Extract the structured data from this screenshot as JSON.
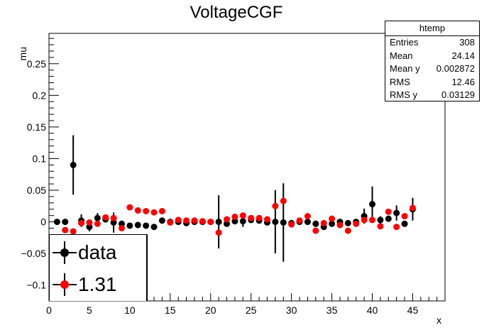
{
  "chart_data": {
    "type": "scatter",
    "title": "VoltageCGF",
    "xlabel": "x",
    "ylabel": "mu",
    "xlim": [
      0,
      49
    ],
    "ylim": [
      -0.125,
      0.298
    ],
    "x_ticks": [
      0,
      5,
      10,
      15,
      20,
      25,
      30,
      35,
      40,
      45
    ],
    "y_ticks": [
      -0.1,
      -0.05,
      0,
      0.05,
      0.1,
      0.15,
      0.2,
      0.25
    ],
    "y_tick_labels": [
      "−0.1",
      "−0.05",
      "0",
      "0.05",
      "0.1",
      "0.15",
      "0.2",
      "0.25"
    ],
    "series": [
      {
        "name": "data",
        "color": "#000000",
        "x": [
          1,
          2,
          3,
          4,
          5,
          6,
          7,
          8,
          9,
          10,
          11,
          12,
          13,
          14,
          15,
          16,
          17,
          18,
          19,
          20,
          21,
          22,
          23,
          24,
          25,
          26,
          27,
          28,
          29,
          30,
          31,
          32,
          33,
          34,
          35,
          36,
          37,
          38,
          39,
          40,
          41,
          42,
          43,
          44,
          45
        ],
        "y": [
          0.0,
          0.0,
          0.09,
          0.002,
          -0.008,
          0.006,
          0.004,
          -0.001,
          -0.003,
          -0.006,
          -0.005,
          -0.006,
          -0.008,
          0.002,
          0.0,
          0.0,
          -0.002,
          0.0,
          0.0,
          0.0,
          0.0,
          -0.003,
          0.001,
          0.001,
          0.003,
          0.002,
          -0.001,
          0.0,
          -0.001,
          -0.002,
          0.0,
          0.0,
          -0.003,
          -0.008,
          -0.003,
          0.0,
          -0.002,
          0.0,
          0.009,
          0.028,
          0.003,
          0.005,
          0.014,
          -0.003,
          0.02
        ],
        "err": [
          0.003,
          0.003,
          0.047,
          0.01,
          0.007,
          0.008,
          0.005,
          0.016,
          0.003,
          0.003,
          0.002,
          0.002,
          0.002,
          0.002,
          0.002,
          0.002,
          0.002,
          0.002,
          0.002,
          0.002,
          0.042,
          0.003,
          0.004,
          0.009,
          0.003,
          0.004,
          0.004,
          0.05,
          0.062,
          0.004,
          0.003,
          0.003,
          0.005,
          0.004,
          0.004,
          0.003,
          0.003,
          0.004,
          0.012,
          0.028,
          0.006,
          0.004,
          0.012,
          0.004,
          0.018
        ]
      },
      {
        "name": "1.31",
        "color": "#ff0000",
        "x": [
          1,
          2,
          3,
          4,
          5,
          6,
          7,
          8,
          9,
          10,
          11,
          12,
          13,
          14,
          15,
          16,
          17,
          18,
          19,
          20,
          21,
          22,
          23,
          24,
          25,
          26,
          27,
          28,
          29,
          30,
          31,
          32,
          33,
          34,
          35,
          36,
          37,
          38,
          39,
          40,
          41,
          42,
          43,
          44,
          45
        ],
        "y": [
          null,
          -0.013,
          -0.015,
          -0.002,
          -0.001,
          -0.003,
          0.007,
          0.006,
          -0.01,
          0.023,
          0.018,
          0.017,
          0.015,
          0.017,
          -0.001,
          0.003,
          0.002,
          0.002,
          0.001,
          0.0,
          -0.017,
          0.004,
          0.008,
          0.01,
          0.006,
          0.006,
          0.004,
          0.025,
          0.033,
          -0.004,
          0.002,
          0.009,
          -0.014,
          -0.002,
          0.005,
          -0.005,
          -0.014,
          -0.003,
          0.003,
          0.003,
          -0.007,
          0.016,
          -0.008,
          0.009,
          0.022
        ],
        "err": [
          0,
          0.003,
          0.003,
          0.003,
          0.003,
          0.003,
          0.003,
          0.003,
          0.003,
          0.003,
          0.003,
          0.003,
          0.003,
          0.003,
          0.003,
          0.003,
          0.003,
          0.003,
          0.003,
          0.003,
          0.003,
          0.003,
          0.003,
          0.003,
          0.003,
          0.003,
          0.003,
          0.003,
          0.003,
          0.003,
          0.003,
          0.003,
          0.003,
          0.003,
          0.003,
          0.003,
          0.003,
          0.003,
          0.003,
          0.003,
          0.003,
          0.003,
          0.003,
          0.003,
          0.003
        ]
      }
    ],
    "legend": {
      "placement": "bottom-left",
      "entries": [
        "data",
        "1.31"
      ]
    },
    "grid": false
  },
  "stats_box": {
    "title": "htemp",
    "rows": [
      {
        "label": "Entries",
        "value": "308"
      },
      {
        "label": "Mean",
        "value": "24.14"
      },
      {
        "label": "Mean y",
        "value": "0.002872"
      },
      {
        "label": "RMS",
        "value": "12.46"
      },
      {
        "label": "RMS y",
        "value": "0.03129"
      }
    ]
  }
}
